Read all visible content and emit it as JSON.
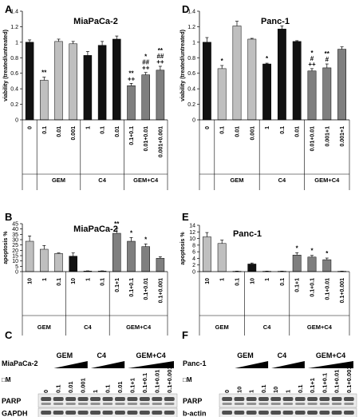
{
  "panel_letters": [
    "A",
    "D",
    "B",
    "E",
    "C",
    "F"
  ],
  "colors": {
    "black_bar": "#111111",
    "gray_bar": "#bfbfbf",
    "dark_gray_bar": "#7f7f7f",
    "axis": "#000000"
  },
  "chart_data": [
    {
      "panel": "A",
      "type": "bar",
      "title": "MiaPaCa-2",
      "ylabel": "viability (treated/untreated)",
      "ylim": [
        0,
        1.4
      ],
      "yticks": [
        0,
        0.2,
        0.4,
        0.6,
        0.8,
        1,
        1.2,
        1.4
      ],
      "categories": [
        "0",
        "0.1",
        "0.01",
        "0.001",
        "1",
        "0.1",
        "0.01",
        "0.1+0.1",
        "0.01+0.01",
        "0.001+0.001"
      ],
      "values": [
        1.0,
        0.51,
        1.01,
        0.98,
        0.83,
        0.96,
        1.04,
        0.44,
        0.58,
        0.64
      ],
      "errors": [
        0.03,
        0.04,
        0.03,
        0.03,
        0.05,
        0.05,
        0.04,
        0.03,
        0.03,
        0.05
      ],
      "bar_colors": [
        "#111111",
        "#bfbfbf",
        "#bfbfbf",
        "#bfbfbf",
        "#111111",
        "#111111",
        "#111111",
        "#7f7f7f",
        "#7f7f7f",
        "#7f7f7f"
      ],
      "annotations": [
        [
          "",
          "**",
          "",
          "",
          "",
          "",
          "",
          "**\n++",
          "*\n##\n++",
          "**\n##\n++"
        ]
      ],
      "groups": [
        {
          "label": "GEM",
          "from": 1,
          "to": 3
        },
        {
          "label": "C4",
          "from": 4,
          "to": 6
        },
        {
          "label": "GEM+C4",
          "from": 7,
          "to": 9
        }
      ]
    },
    {
      "panel": "D",
      "type": "bar",
      "title": "Panc-1",
      "ylabel": "viability (treated/untreated)",
      "ylim": [
        0,
        1.4
      ],
      "yticks": [
        0,
        0.2,
        0.4,
        0.6,
        0.8,
        1,
        1.2,
        1.4
      ],
      "categories": [
        "0",
        "0.1",
        "0.01",
        "0.001",
        "1",
        "0.1",
        "0.01",
        "0.01+0.01",
        "0.001+1",
        "0.001+1"
      ],
      "values": [
        1.0,
        0.66,
        1.21,
        1.04,
        0.72,
        1.17,
        1.01,
        0.63,
        0.67,
        0.91
      ],
      "errors": [
        0.06,
        0.04,
        0.06,
        0.01,
        0.01,
        0.04,
        0.01,
        0.03,
        0.05,
        0.03
      ],
      "bar_colors": [
        "#111111",
        "#bfbfbf",
        "#bfbfbf",
        "#bfbfbf",
        "#111111",
        "#111111",
        "#111111",
        "#7f7f7f",
        "#7f7f7f",
        "#7f7f7f"
      ],
      "annotations": [
        [
          "",
          "*",
          "",
          "",
          "*",
          "",
          "",
          "*\n#\n++",
          "**\n#",
          ""
        ]
      ],
      "groups": [
        {
          "label": "GEM",
          "from": 1,
          "to": 3
        },
        {
          "label": "C4",
          "from": 4,
          "to": 6
        },
        {
          "label": "GEM+C4",
          "from": 7,
          "to": 9
        }
      ]
    },
    {
      "panel": "B",
      "type": "bar",
      "title": "MiaPaCa-2",
      "ylabel": "apoptosis %",
      "ylim": [
        0,
        45
      ],
      "yticks": [
        0,
        5,
        10,
        15,
        20,
        25,
        30,
        35,
        40,
        45
      ],
      "categories": [
        "10",
        "1",
        "0.1",
        "10",
        "1",
        "0.1",
        "0.1+1",
        "0.1+0.1",
        "0.1+0.01",
        "0.1+0.001"
      ],
      "values": [
        28.5,
        21.0,
        17.0,
        14.5,
        0.5,
        0.5,
        36.0,
        28.5,
        23.5,
        12.5
      ],
      "errors": [
        5.0,
        3.5,
        0.5,
        3.0,
        0.2,
        0.2,
        4.5,
        3.5,
        2.5,
        1.5
      ],
      "bar_colors": [
        "#bfbfbf",
        "#bfbfbf",
        "#bfbfbf",
        "#111111",
        "#111111",
        "#111111",
        "#7f7f7f",
        "#7f7f7f",
        "#7f7f7f",
        "#7f7f7f"
      ],
      "annotations": [
        [
          "",
          "",
          "",
          "",
          "",
          "",
          "**",
          "*",
          "*",
          ""
        ]
      ],
      "groups": [
        {
          "label": "GEM",
          "from": 0,
          "to": 2
        },
        {
          "label": "C4",
          "from": 3,
          "to": 5
        },
        {
          "label": "GEM+C4",
          "from": 6,
          "to": 9
        }
      ]
    },
    {
      "panel": "E",
      "type": "bar",
      "title": "Panc-1",
      "ylabel": "apoptosis %",
      "ylim": [
        0,
        14
      ],
      "yticks": [
        0,
        2,
        4,
        6,
        8,
        10,
        12,
        14
      ],
      "categories": [
        "10",
        "1",
        "0.1",
        "10",
        "1",
        "0.1",
        "0.1+1",
        "0.1+0.1",
        "0.1+0.01",
        "0.1+0.001"
      ],
      "values": [
        10.5,
        8.5,
        0.1,
        2.3,
        0.1,
        0.1,
        5.0,
        4.4,
        3.6,
        0.1
      ],
      "errors": [
        1.3,
        1.0,
        0.05,
        0.3,
        0.05,
        0.05,
        0.7,
        0.5,
        0.5,
        0.05
      ],
      "bar_colors": [
        "#bfbfbf",
        "#bfbfbf",
        "#bfbfbf",
        "#111111",
        "#111111",
        "#111111",
        "#7f7f7f",
        "#7f7f7f",
        "#7f7f7f",
        "#7f7f7f"
      ],
      "annotations": [
        [
          "",
          "",
          "",
          "",
          "",
          "",
          "*",
          "*",
          "*",
          ""
        ]
      ],
      "groups": [
        {
          "label": "GEM",
          "from": 0,
          "to": 2
        },
        {
          "label": "C4",
          "from": 3,
          "to": 5
        },
        {
          "label": "GEM+C4",
          "from": 6,
          "to": 9
        }
      ]
    }
  ],
  "blots": [
    {
      "panel": "C",
      "cell_line": "MiaPaCa-2",
      "groups": [
        "GEM",
        "C4",
        "GEM+C4"
      ],
      "unit": "□M",
      "lanes": [
        "0",
        "0.1",
        "0.01",
        "0.001",
        "1",
        "0.1",
        "0.01",
        "0.1+1",
        "0.1+0.1",
        "0.1+0.01",
        "0.1+0.001"
      ],
      "rows": [
        "PARP",
        "GAPDH"
      ]
    },
    {
      "panel": "F",
      "cell_line": "Panc-1",
      "groups": [
        "GEM",
        "C4",
        "GEM+C4"
      ],
      "unit": "□M",
      "lanes": [
        "0",
        "10",
        "1",
        "0.1",
        "10",
        "1",
        "0.1",
        "0.1+1",
        "0.1+0.1",
        "0.1+0.01",
        "0.1+0.001"
      ],
      "rows": [
        "PARP",
        "b-actin"
      ]
    }
  ]
}
